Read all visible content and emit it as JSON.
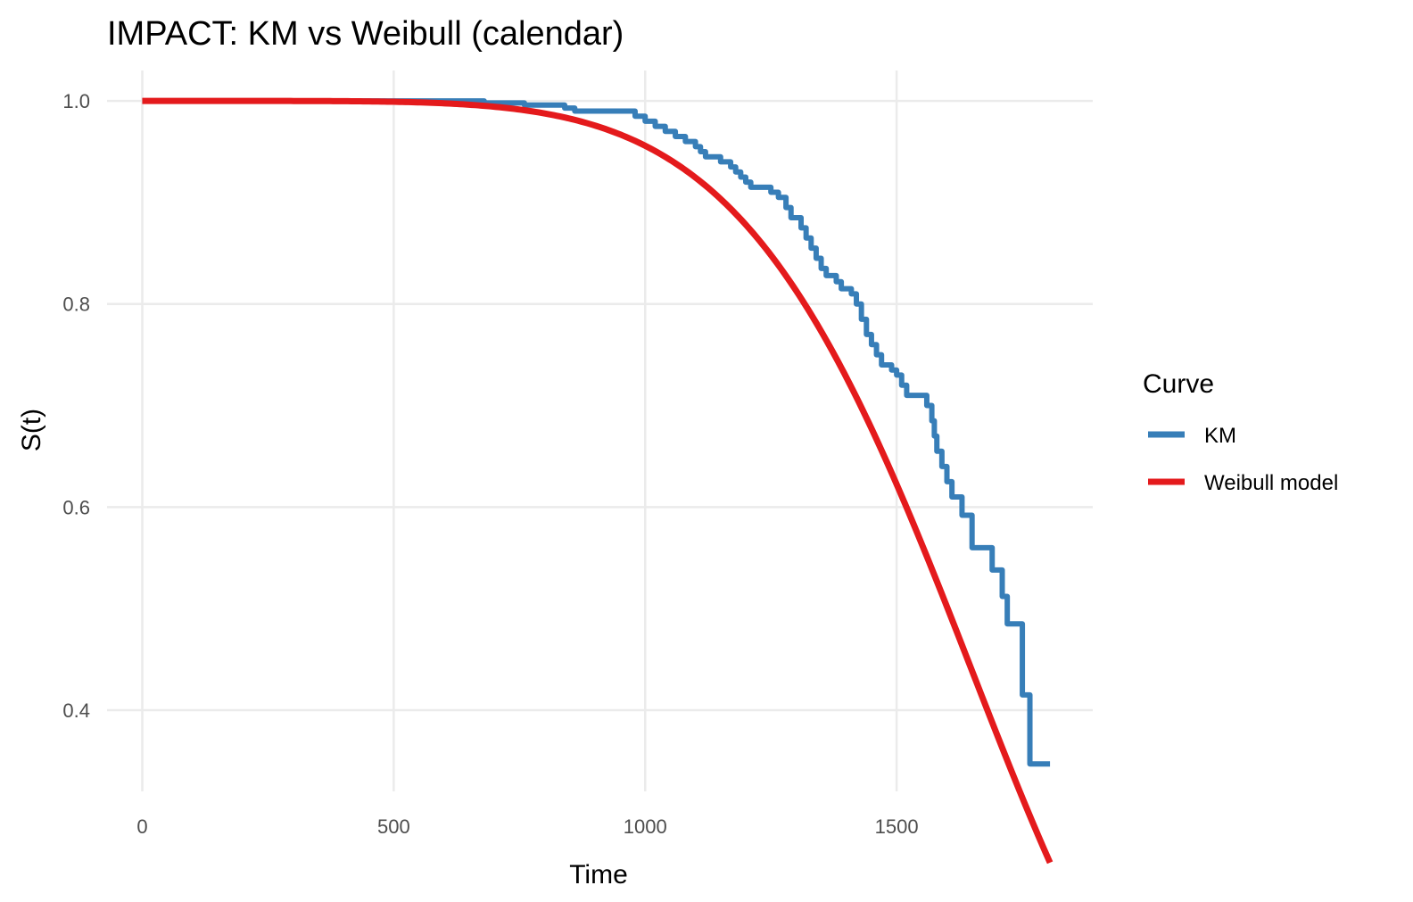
{
  "chart_data": {
    "type": "line",
    "title": "IMPACT: KM vs Weibull (calendar)",
    "xlabel": "Time",
    "ylabel": "S(t)",
    "xlim": [
      -70,
      1890
    ],
    "ylim": [
      0.32,
      1.03
    ],
    "x_ticks": [
      0,
      500,
      1000,
      1500
    ],
    "x_tick_labels": [
      "0",
      "500",
      "1000",
      "1500"
    ],
    "y_ticks": [
      0.4,
      0.6,
      0.8,
      1.0
    ],
    "y_tick_labels": [
      "0.4",
      "0.6",
      "0.8",
      "1.0"
    ],
    "grid": true,
    "legend": {
      "title": "Curve",
      "position": "right"
    },
    "series": [
      {
        "name": "KM",
        "color": "#377eb8",
        "style": "step",
        "points": [
          [
            0,
            1.0
          ],
          [
            680,
            1.0
          ],
          [
            680,
            0.998
          ],
          [
            760,
            0.998
          ],
          [
            760,
            0.996
          ],
          [
            840,
            0.996
          ],
          [
            840,
            0.993
          ],
          [
            860,
            0.993
          ],
          [
            860,
            0.99
          ],
          [
            980,
            0.99
          ],
          [
            980,
            0.985
          ],
          [
            1000,
            0.985
          ],
          [
            1000,
            0.98
          ],
          [
            1020,
            0.98
          ],
          [
            1020,
            0.975
          ],
          [
            1040,
            0.975
          ],
          [
            1040,
            0.97
          ],
          [
            1060,
            0.97
          ],
          [
            1060,
            0.965
          ],
          [
            1080,
            0.965
          ],
          [
            1080,
            0.96
          ],
          [
            1100,
            0.96
          ],
          [
            1100,
            0.955
          ],
          [
            1110,
            0.955
          ],
          [
            1110,
            0.95
          ],
          [
            1120,
            0.95
          ],
          [
            1120,
            0.945
          ],
          [
            1150,
            0.945
          ],
          [
            1150,
            0.94
          ],
          [
            1170,
            0.94
          ],
          [
            1170,
            0.935
          ],
          [
            1180,
            0.935
          ],
          [
            1180,
            0.93
          ],
          [
            1190,
            0.93
          ],
          [
            1190,
            0.925
          ],
          [
            1200,
            0.925
          ],
          [
            1200,
            0.92
          ],
          [
            1210,
            0.92
          ],
          [
            1210,
            0.915
          ],
          [
            1250,
            0.915
          ],
          [
            1250,
            0.91
          ],
          [
            1265,
            0.91
          ],
          [
            1265,
            0.905
          ],
          [
            1280,
            0.905
          ],
          [
            1280,
            0.895
          ],
          [
            1290,
            0.895
          ],
          [
            1290,
            0.885
          ],
          [
            1310,
            0.885
          ],
          [
            1310,
            0.875
          ],
          [
            1320,
            0.875
          ],
          [
            1320,
            0.865
          ],
          [
            1330,
            0.865
          ],
          [
            1330,
            0.855
          ],
          [
            1340,
            0.855
          ],
          [
            1340,
            0.845
          ],
          [
            1350,
            0.845
          ],
          [
            1350,
            0.835
          ],
          [
            1360,
            0.835
          ],
          [
            1360,
            0.828
          ],
          [
            1380,
            0.828
          ],
          [
            1380,
            0.822
          ],
          [
            1390,
            0.822
          ],
          [
            1390,
            0.815
          ],
          [
            1410,
            0.815
          ],
          [
            1410,
            0.81
          ],
          [
            1420,
            0.81
          ],
          [
            1420,
            0.8
          ],
          [
            1430,
            0.8
          ],
          [
            1430,
            0.785
          ],
          [
            1440,
            0.785
          ],
          [
            1440,
            0.77
          ],
          [
            1450,
            0.77
          ],
          [
            1450,
            0.76
          ],
          [
            1460,
            0.76
          ],
          [
            1460,
            0.75
          ],
          [
            1470,
            0.75
          ],
          [
            1470,
            0.74
          ],
          [
            1490,
            0.74
          ],
          [
            1490,
            0.735
          ],
          [
            1500,
            0.735
          ],
          [
            1500,
            0.73
          ],
          [
            1510,
            0.73
          ],
          [
            1510,
            0.72
          ],
          [
            1520,
            0.72
          ],
          [
            1520,
            0.71
          ],
          [
            1560,
            0.71
          ],
          [
            1560,
            0.7
          ],
          [
            1570,
            0.7
          ],
          [
            1570,
            0.685
          ],
          [
            1575,
            0.685
          ],
          [
            1575,
            0.67
          ],
          [
            1580,
            0.67
          ],
          [
            1580,
            0.655
          ],
          [
            1590,
            0.655
          ],
          [
            1590,
            0.64
          ],
          [
            1600,
            0.64
          ],
          [
            1600,
            0.625
          ],
          [
            1610,
            0.625
          ],
          [
            1610,
            0.61
          ],
          [
            1630,
            0.61
          ],
          [
            1630,
            0.592
          ],
          [
            1650,
            0.592
          ],
          [
            1650,
            0.56
          ],
          [
            1690,
            0.56
          ],
          [
            1690,
            0.538
          ],
          [
            1710,
            0.538
          ],
          [
            1710,
            0.512
          ],
          [
            1720,
            0.512
          ],
          [
            1720,
            0.485
          ],
          [
            1750,
            0.485
          ],
          [
            1750,
            0.415
          ],
          [
            1765,
            0.415
          ],
          [
            1765,
            0.347
          ],
          [
            1805,
            0.347
          ]
        ]
      },
      {
        "name": "Weibull model",
        "color": "#e41a1c",
        "style": "smooth",
        "model": {
          "lambda": 1706,
          "k": 5.8
        },
        "x_range": [
          0,
          1805
        ]
      }
    ]
  }
}
